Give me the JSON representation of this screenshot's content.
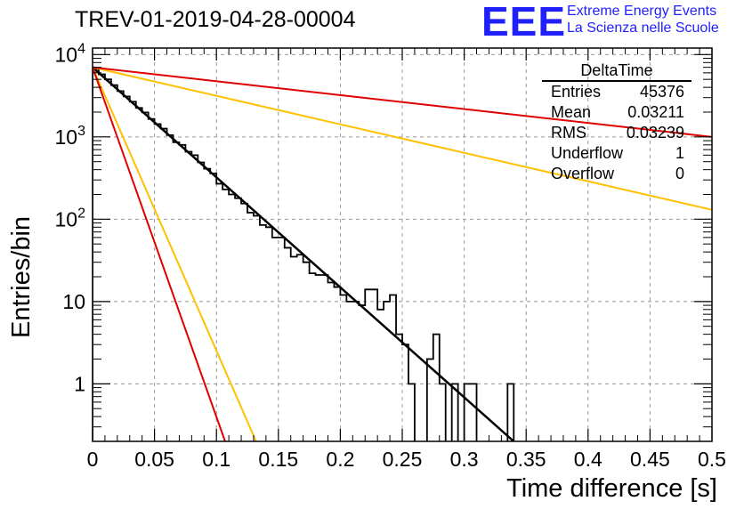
{
  "title": "TREV-01-2019-04-28-00004",
  "logo": {
    "mark": "EEE",
    "line1": "Extreme Energy Events",
    "line2": "La Scienza nelle Scuole",
    "color": "#2020ff"
  },
  "stats_box": {
    "name": "DeltaTime",
    "rows": [
      {
        "label": "Entries",
        "value": "45376"
      },
      {
        "label": "Mean",
        "value": "0.03211"
      },
      {
        "label": "RMS",
        "value": "0.03239"
      },
      {
        "label": "Underflow",
        "value": "1"
      },
      {
        "label": "Overflow",
        "value": "0"
      }
    ]
  },
  "chart_data": {
    "type": "line",
    "xlabel": "Time difference [s]",
    "ylabel": "Entries/bin",
    "xlim": [
      0,
      0.5
    ],
    "ylim": [
      0.2,
      12000
    ],
    "yscale": "log",
    "grid": true,
    "x_ticks": [
      "0",
      "0.05",
      "0.1",
      "0.15",
      "0.2",
      "0.25",
      "0.3",
      "0.35",
      "0.4",
      "0.45",
      "0.5"
    ],
    "y_ticks": [
      {
        "value": 1,
        "label": "1"
      },
      {
        "value": 10,
        "label": "10"
      },
      {
        "value": 100,
        "label": "10^2"
      },
      {
        "value": 1000,
        "label": "10^3"
      },
      {
        "value": 10000,
        "label": "10^4"
      }
    ],
    "histogram": {
      "bin_width": 0.005,
      "x_start": 0,
      "counts": [
        6700,
        5750,
        5000,
        4250,
        3600,
        3100,
        2680,
        2250,
        1980,
        1650,
        1430,
        1260,
        1050,
        860,
        800,
        660,
        600,
        490,
        410,
        360,
        270,
        230,
        200,
        180,
        155,
        120,
        110,
        85,
        80,
        60,
        60,
        45,
        35,
        37,
        30,
        22,
        21,
        21,
        17,
        15,
        12,
        10,
        10,
        9,
        14,
        14,
        8,
        10,
        12,
        4,
        3,
        1,
        0.1,
        0.1,
        2,
        4,
        1,
        0.1,
        1,
        0.1,
        1,
        1,
        0.1,
        0.1,
        0.1,
        0.1,
        0.1,
        1,
        0.1,
        0.1,
        0.1,
        0.1,
        0.1,
        0.1,
        0.1,
        0.1,
        0.1,
        0.1,
        0.1,
        0.1,
        0.1,
        0.1,
        0.1,
        0.1,
        0.1,
        0.1,
        0.1,
        0.1,
        0.1,
        0.1,
        0.1,
        0.1,
        0.1,
        0.1,
        0.1,
        0.1,
        0.1,
        0.1,
        0.1,
        0.1
      ],
      "color": "#000000"
    },
    "series": [
      {
        "color": "#000000",
        "x": [
          0,
          0.34
        ],
        "y": [
          7000,
          0.2
        ],
        "width": 2.5
      },
      {
        "color": "#ffc000",
        "x": [
          0,
          0.5
        ],
        "y": [
          7000,
          130
        ],
        "width": 2
      },
      {
        "color": "#ffc000",
        "x": [
          0,
          0.132
        ],
        "y": [
          7000,
          0.2
        ],
        "width": 2
      },
      {
        "color": "#e00000",
        "x": [
          0,
          0.5
        ],
        "y": [
          7000,
          1000
        ],
        "width": 2
      },
      {
        "color": "#e00000",
        "x": [
          0,
          0.107
        ],
        "y": [
          7000,
          0.2
        ],
        "width": 2
      }
    ]
  }
}
